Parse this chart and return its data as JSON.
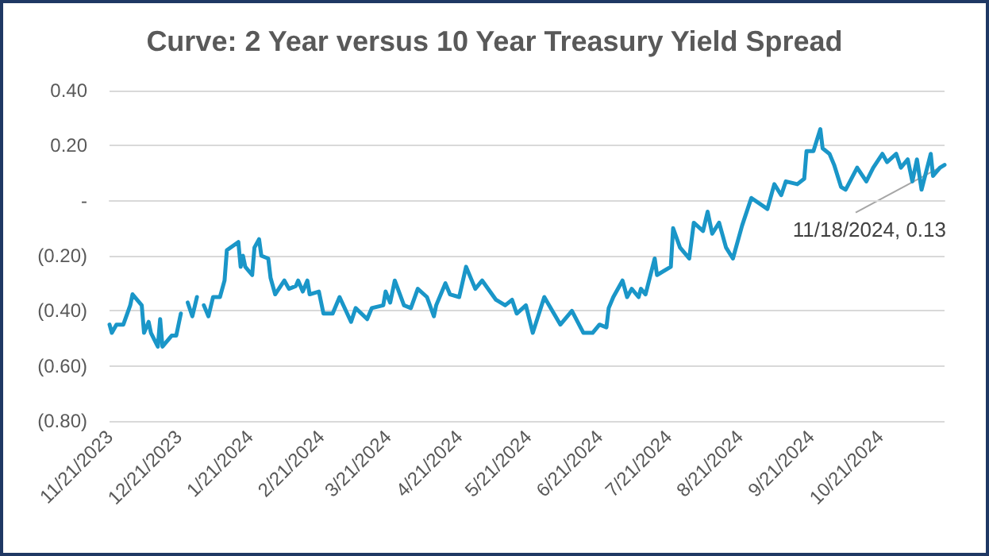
{
  "chart_data": {
    "type": "line",
    "title": "Curve: 2 Year versus 10 Year Treasury Yield Spread",
    "x": [
      "2023-11-21",
      "2023-11-22",
      "2023-11-24",
      "2023-11-27",
      "2023-11-30",
      "2023-12-01",
      "2023-12-05",
      "2023-12-06",
      "2023-12-08",
      "2023-12-09",
      "2023-12-12",
      "2023-12-13",
      "2023-12-14",
      "2023-12-18",
      "2023-12-20",
      "2023-12-22",
      "2023-12-24",
      "2023-12-25",
      "2023-12-27",
      "2023-12-29",
      "2023-12-31",
      "2024-01-01",
      "2024-01-03",
      "2024-01-05",
      "2024-01-08",
      "2024-01-10",
      "2024-01-11",
      "2024-01-16",
      "2024-01-17",
      "2024-01-18",
      "2024-01-19",
      "2024-01-22",
      "2024-01-23",
      "2024-01-25",
      "2024-01-26",
      "2024-01-29",
      "2024-01-30",
      "2024-02-01",
      "2024-02-05",
      "2024-02-07",
      "2024-02-10",
      "2024-02-11",
      "2024-02-13",
      "2024-02-15",
      "2024-02-16",
      "2024-02-20",
      "2024-02-22",
      "2024-02-26",
      "2024-02-29",
      "2024-03-05",
      "2024-03-07",
      "2024-03-12",
      "2024-03-14",
      "2024-03-19",
      "2024-03-20",
      "2024-03-22",
      "2024-03-24",
      "2024-03-28",
      "2024-03-31",
      "2024-04-03",
      "2024-04-07",
      "2024-04-10",
      "2024-04-11",
      "2024-04-15",
      "2024-04-17",
      "2024-04-21",
      "2024-04-24",
      "2024-04-28",
      "2024-05-01",
      "2024-05-07",
      "2024-05-11",
      "2024-05-14",
      "2024-05-16",
      "2024-05-20",
      "2024-05-23",
      "2024-05-28",
      "2024-06-04",
      "2024-06-09",
      "2024-06-14",
      "2024-06-18",
      "2024-06-21",
      "2024-06-24",
      "2024-06-25",
      "2024-06-27",
      "2024-07-01",
      "2024-07-03",
      "2024-07-05",
      "2024-07-08",
      "2024-07-09",
      "2024-07-11",
      "2024-07-15",
      "2024-07-16",
      "2024-07-22",
      "2024-07-23",
      "2024-07-26",
      "2024-07-30",
      "2024-08-01",
      "2024-08-05",
      "2024-08-07",
      "2024-08-09",
      "2024-08-12",
      "2024-08-15",
      "2024-08-18",
      "2024-08-22",
      "2024-08-26",
      "2024-09-02",
      "2024-09-05",
      "2024-09-08",
      "2024-09-10",
      "2024-09-15",
      "2024-09-18",
      "2024-09-19",
      "2024-09-22",
      "2024-09-25",
      "2024-09-26",
      "2024-09-29",
      "2024-10-01",
      "2024-10-04",
      "2024-10-06",
      "2024-10-11",
      "2024-10-15",
      "2024-10-18",
      "2024-10-22",
      "2024-10-24",
      "2024-10-28",
      "2024-10-30",
      "2024-11-02",
      "2024-11-04",
      "2024-11-06",
      "2024-11-08",
      "2024-11-12",
      "2024-11-13",
      "2024-11-16",
      "2024-11-18"
    ],
    "series": [
      {
        "color": "#1a96c8",
        "values": [
          -0.45,
          -0.48,
          -0.45,
          -0.45,
          -0.38,
          -0.34,
          -0.38,
          -0.48,
          -0.44,
          -0.48,
          -0.53,
          -0.43,
          -0.53,
          -0.49,
          -0.49,
          -0.41,
          null,
          -0.37,
          -0.42,
          -0.35,
          null,
          -0.38,
          -0.42,
          -0.35,
          -0.35,
          -0.29,
          -0.18,
          -0.15,
          -0.24,
          -0.2,
          -0.24,
          -0.27,
          -0.17,
          -0.14,
          -0.2,
          -0.21,
          -0.28,
          -0.34,
          -0.29,
          -0.32,
          -0.31,
          -0.29,
          -0.33,
          -0.29,
          -0.34,
          -0.33,
          -0.41,
          -0.41,
          -0.35,
          -0.44,
          -0.39,
          -0.43,
          -0.39,
          -0.38,
          -0.33,
          -0.37,
          -0.29,
          -0.38,
          -0.39,
          -0.32,
          -0.35,
          -0.42,
          -0.38,
          -0.3,
          -0.34,
          -0.35,
          -0.24,
          -0.32,
          -0.29,
          -0.36,
          -0.38,
          -0.36,
          -0.41,
          -0.38,
          -0.48,
          -0.35,
          -0.45,
          -0.4,
          -0.48,
          -0.48,
          -0.45,
          -0.46,
          -0.39,
          -0.35,
          -0.29,
          -0.35,
          -0.32,
          -0.35,
          -0.32,
          -0.34,
          -0.21,
          -0.27,
          -0.24,
          -0.1,
          -0.17,
          -0.21,
          -0.08,
          -0.11,
          -0.04,
          -0.12,
          -0.08,
          -0.17,
          -0.21,
          -0.09,
          0.01,
          -0.03,
          0.06,
          0.02,
          0.07,
          0.06,
          0.08,
          0.18,
          0.18,
          0.26,
          0.19,
          0.17,
          0.13,
          0.05,
          0.04,
          0.12,
          0.07,
          0.12,
          0.17,
          0.14,
          0.17,
          0.12,
          0.15,
          0.07,
          0.15,
          0.04,
          0.17,
          0.09,
          0.12,
          0.13
        ]
      }
    ],
    "xlim": [
      "2023-11-21",
      "2024-11-18"
    ],
    "xticks": [
      {
        "value": "2023-11-21",
        "label": "11/21/2023"
      },
      {
        "value": "2023-12-21",
        "label": "12/21/2023"
      },
      {
        "value": "2024-01-21",
        "label": "1/21/2024"
      },
      {
        "value": "2024-02-21",
        "label": "2/21/2024"
      },
      {
        "value": "2024-03-21",
        "label": "3/21/2024"
      },
      {
        "value": "2024-04-21",
        "label": "4/21/2024"
      },
      {
        "value": "2024-05-21",
        "label": "5/21/2024"
      },
      {
        "value": "2024-06-21",
        "label": "6/21/2024"
      },
      {
        "value": "2024-07-21",
        "label": "7/21/2024"
      },
      {
        "value": "2024-08-21",
        "label": "8/21/2024"
      },
      {
        "value": "2024-09-21",
        "label": "9/21/2024"
      },
      {
        "value": "2024-10-21",
        "label": "10/21/2024"
      }
    ],
    "ylim": [
      -0.8,
      0.4
    ],
    "yticks": [
      {
        "value": -0.8,
        "label": "(0.80)"
      },
      {
        "value": -0.6,
        "label": "(0.60)"
      },
      {
        "value": -0.4,
        "label": "(0.40)"
      },
      {
        "value": -0.2,
        "label": "(0.20)"
      },
      {
        "value": 0,
        "label": "-"
      },
      {
        "value": 0.2,
        "label": "0.20"
      },
      {
        "value": 0.4,
        "label": "0.40"
      }
    ],
    "annotations": [
      {
        "text": "11/18/2024, 0.13",
        "x": "2024-11-18",
        "y": 0.13
      }
    ],
    "grid": "y",
    "marker": "none",
    "line_style": "solid"
  }
}
